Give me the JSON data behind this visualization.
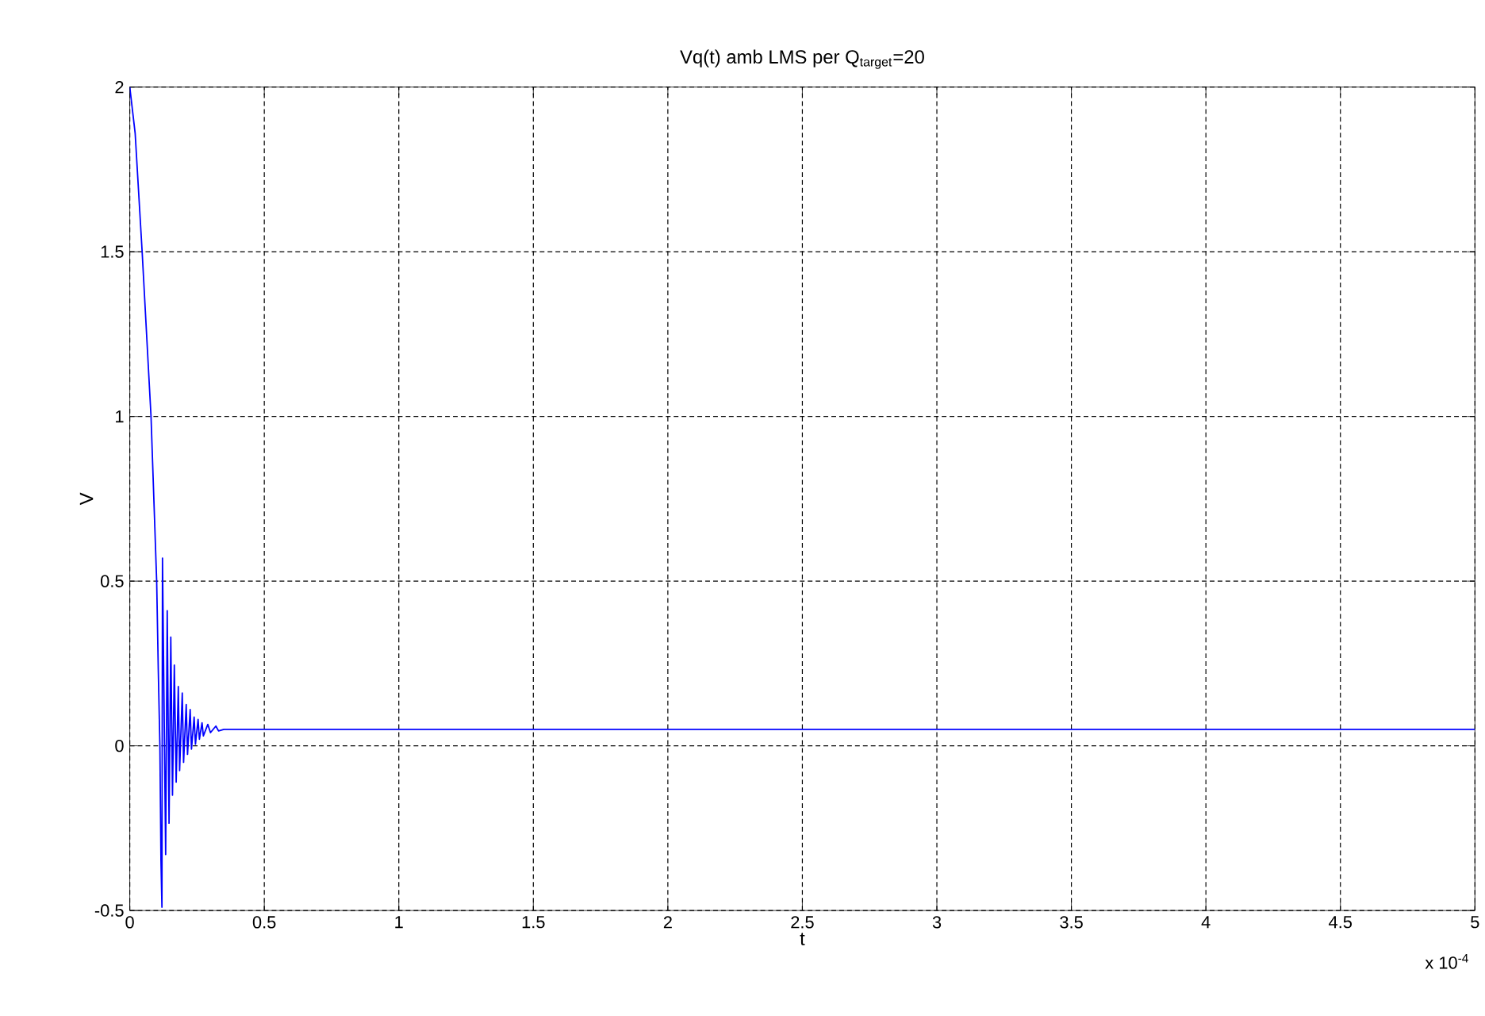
{
  "chart_data": {
    "type": "line",
    "title": "Vq(t) amb LMS per Q$_{target}$=20",
    "xlabel": "t",
    "ylabel": "V",
    "annotations": [
      "x 10$^{-4}$"
    ],
    "xlim": [
      0,
      5
    ],
    "ylim": [
      -0.5,
      2
    ],
    "xticks": [
      0,
      0.5,
      1,
      1.5,
      2,
      2.5,
      3,
      3.5,
      4,
      4.5,
      5
    ],
    "yticks": [
      -0.5,
      0,
      0.5,
      1,
      1.5,
      2
    ],
    "grid": true,
    "marker": "none",
    "line_style": "solid",
    "series": [
      {
        "color": "#0000ff",
        "x": [
          0,
          0.02,
          0.046,
          0.079,
          0.1,
          0.106,
          0.112,
          0.116,
          0.1196,
          0.1216,
          0.1334,
          0.1392,
          0.146,
          0.1525,
          0.1588,
          0.1656,
          0.1725,
          0.1804,
          0.1853,
          0.1951,
          0.2,
          0.2098,
          0.2147,
          0.2245,
          0.2294,
          0.2392,
          0.2441,
          0.2539,
          0.2588,
          0.2686,
          0.2735,
          0.29,
          0.3,
          0.32,
          0.33,
          0.35,
          5
        ],
        "values": [
          2,
          1.86,
          1.5,
          1,
          0.5,
          0.23,
          0,
          -0.35,
          -0.49,
          0.57,
          -0.33,
          0.41,
          -0.235,
          0.33,
          -0.15,
          0.245,
          -0.11,
          0.18,
          -0.075,
          0.16,
          -0.05,
          0.125,
          -0.026,
          0.11,
          -0.01,
          0.087,
          0.005,
          0.08,
          0.02,
          0.07,
          0.03,
          0.065,
          0.04,
          0.06,
          0.045,
          0.05,
          0.05
        ]
      }
    ]
  }
}
